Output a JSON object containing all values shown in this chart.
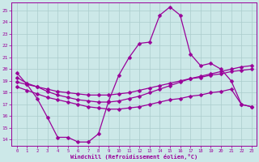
{
  "xlabel": "Windchill (Refroidissement éolien,°C)",
  "background_color": "#cce8e8",
  "grid_color": "#aacccc",
  "line_color": "#990099",
  "x_ticks": [
    0,
    1,
    2,
    3,
    4,
    5,
    6,
    7,
    8,
    9,
    10,
    11,
    12,
    13,
    14,
    15,
    16,
    17,
    18,
    19,
    20,
    21,
    22,
    23
  ],
  "y_ticks": [
    14,
    15,
    16,
    17,
    18,
    19,
    20,
    21,
    22,
    23,
    24,
    25
  ],
  "xlim": [
    -0.5,
    23.5
  ],
  "ylim": [
    13.5,
    25.7
  ],
  "series": {
    "line1": {
      "x": [
        0,
        1,
        2,
        3,
        4,
        5,
        6,
        7,
        8,
        9,
        10,
        11,
        12,
        13,
        14,
        15,
        16,
        17,
        18,
        19,
        20,
        21,
        22,
        23
      ],
      "y": [
        19.7,
        18.7,
        17.5,
        15.9,
        14.2,
        14.2,
        13.8,
        13.8,
        14.5,
        17.3,
        19.5,
        21.0,
        22.2,
        22.3,
        24.6,
        25.3,
        24.6,
        21.3,
        20.3,
        20.5,
        20.0,
        19.0,
        17.0,
        16.8
      ]
    },
    "line2": {
      "x": [
        0,
        1,
        2,
        3,
        4,
        5,
        6,
        7,
        8,
        9,
        10,
        11,
        12,
        13,
        14,
        15,
        16,
        17,
        18,
        19,
        20,
        21,
        22,
        23
      ],
      "y": [
        19.3,
        18.8,
        18.5,
        18.1,
        17.8,
        17.6,
        17.4,
        17.3,
        17.2,
        17.2,
        17.3,
        17.5,
        17.7,
        18.0,
        18.3,
        18.6,
        18.9,
        19.2,
        19.4,
        19.6,
        19.8,
        20.0,
        20.2,
        20.3
      ]
    },
    "line3": {
      "x": [
        0,
        1,
        2,
        3,
        4,
        5,
        6,
        7,
        8,
        9,
        10,
        11,
        12,
        13,
        14,
        15,
        16,
        17,
        18,
        19,
        20,
        21,
        22,
        23
      ],
      "y": [
        18.9,
        18.7,
        18.5,
        18.3,
        18.1,
        18.0,
        17.9,
        17.8,
        17.8,
        17.8,
        17.9,
        18.0,
        18.2,
        18.4,
        18.6,
        18.8,
        19.0,
        19.2,
        19.3,
        19.5,
        19.6,
        19.8,
        19.9,
        20.0
      ]
    },
    "line4": {
      "x": [
        0,
        1,
        2,
        3,
        4,
        5,
        6,
        7,
        8,
        9,
        10,
        11,
        12,
        13,
        14,
        15,
        16,
        17,
        18,
        19,
        20,
        21,
        22,
        23
      ],
      "y": [
        18.5,
        18.2,
        17.9,
        17.6,
        17.4,
        17.2,
        17.0,
        16.8,
        16.7,
        16.6,
        16.6,
        16.7,
        16.8,
        17.0,
        17.2,
        17.4,
        17.5,
        17.7,
        17.8,
        18.0,
        18.1,
        18.3,
        17.0,
        16.8
      ]
    }
  },
  "marker": "D",
  "markersize": 2.5,
  "linewidth": 0.9
}
